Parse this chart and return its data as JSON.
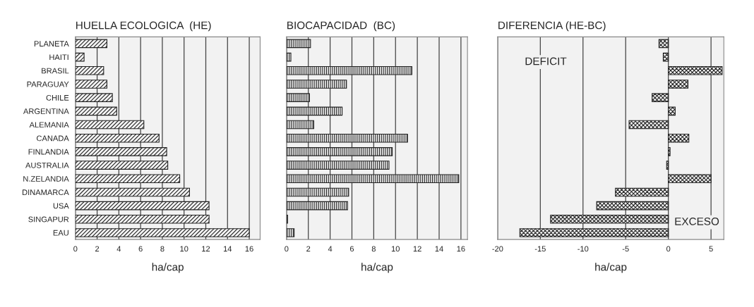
{
  "chart_data": [
    {
      "type": "bar",
      "orientation": "horizontal",
      "title": "HUELLA ECOLOGICA  (HE)",
      "xlabel": "ha/cap",
      "categories": [
        "PLANETA",
        "HAITI",
        "BRASIL",
        "PARAGUAY",
        "CHILE",
        "ARGENTINA",
        "ALEMANIA",
        "CANADA",
        "FINLANDIA",
        "AUSTRALIA",
        "N.ZELANDIA",
        "DINAMARCA",
        "USA",
        "SINGAPUR",
        "EAU"
      ],
      "values": [
        2.9,
        0.8,
        2.6,
        2.9,
        3.4,
        3.8,
        6.3,
        7.7,
        8.4,
        8.5,
        9.6,
        10.5,
        12.3,
        12.3,
        16.0
      ],
      "color": "#222222",
      "xlim": [
        0,
        17
      ],
      "xticks": [
        0,
        2,
        4,
        6,
        8,
        10,
        12,
        14,
        16
      ],
      "grid": "x"
    },
    {
      "type": "bar",
      "orientation": "horizontal",
      "title": "BIOCAPACIDAD  (BC)",
      "xlabel": "ha/cap",
      "categories": [
        null,
        null,
        null,
        null,
        null,
        null,
        null,
        null,
        null,
        null,
        null,
        null,
        null,
        null,
        null
      ],
      "values": [
        2.2,
        0.4,
        11.5,
        5.5,
        2.1,
        5.1,
        2.5,
        11.1,
        9.7,
        9.4,
        15.8,
        5.7,
        5.6,
        0.1,
        0.7
      ],
      "color": "#222222",
      "xlim": [
        0,
        16.6
      ],
      "xticks": [
        0,
        2,
        4,
        6,
        8,
        10,
        12,
        14,
        16
      ],
      "grid": "x"
    },
    {
      "type": "bar",
      "orientation": "horizontal",
      "title": "DIFERENCIA (HE-BC)",
      "xlabel": "ha/cap",
      "categories": [
        null,
        null,
        null,
        null,
        null,
        null,
        null,
        null,
        null,
        null,
        null,
        null,
        null,
        null,
        null
      ],
      "values": [
        -1.1,
        -0.6,
        6.3,
        2.3,
        -1.9,
        0.8,
        -4.6,
        2.4,
        0.2,
        -0.2,
        5.0,
        -6.2,
        -8.4,
        -13.8,
        -17.4
      ],
      "color": "#222222",
      "xlim": [
        -20,
        6.5
      ],
      "xticks": [
        -20,
        -15,
        -10,
        -5,
        0,
        5
      ],
      "grid": "x",
      "annotations": [
        "DEFICIT",
        "EXCESO"
      ]
    }
  ]
}
